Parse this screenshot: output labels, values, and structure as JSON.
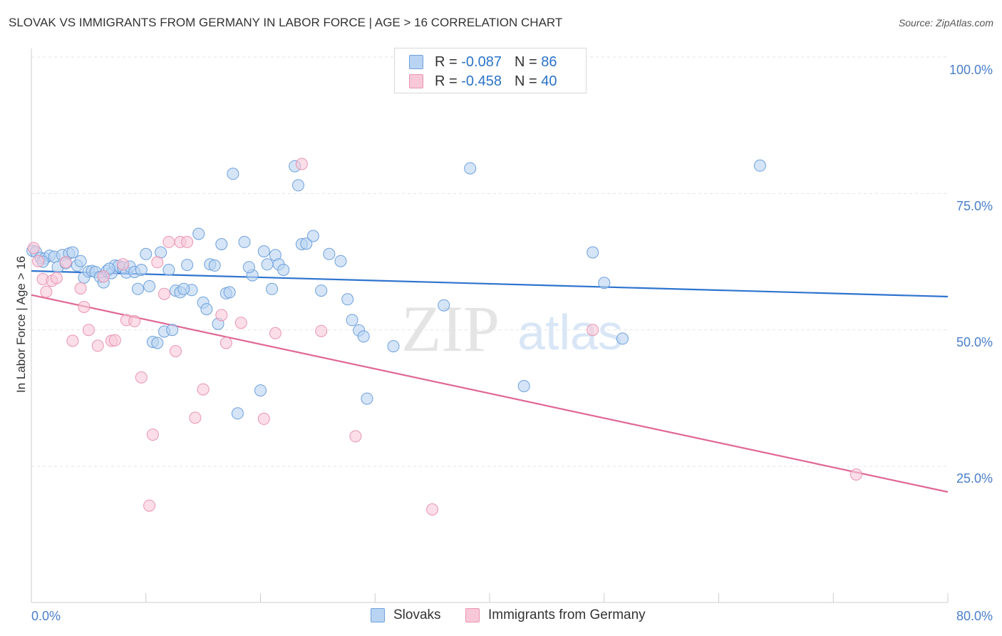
{
  "header": {
    "title": "SLOVAK VS IMMIGRANTS FROM GERMANY IN LABOR FORCE | AGE > 16 CORRELATION CHART",
    "source": "Source: ZipAtlas.com"
  },
  "legend": {
    "series1": {
      "r_label": "R = ",
      "r_value": "-0.087",
      "n_label": "N = ",
      "n_value": "86"
    },
    "series2": {
      "r_label": "R = ",
      "r_value": "-0.458",
      "n_label": "N = ",
      "n_value": "40"
    }
  },
  "bottom_legend": {
    "series1": "Slovaks",
    "series2": "Immigrants from Germany"
  },
  "watermark": {
    "zip": "ZIP",
    "atlas": "atlas"
  },
  "colors": {
    "series1_fill": "#b9d3f2",
    "series1_stroke": "#6ea0dc",
    "series1_line": "#2e74cf",
    "series2_fill": "#f8c8d8",
    "series2_stroke": "#e994b0",
    "series2_line": "#e06794",
    "axis_label": "#4a7fcb",
    "grid": "#e3e3e3"
  },
  "chart_data": {
    "type": "scatter",
    "title": "SLOVAK VS IMMIGRANTS FROM GERMANY IN LABOR FORCE | AGE > 16 CORRELATION CHART",
    "xlabel": "",
    "ylabel": "In Labor Force | Age > 16",
    "xlim": [
      0,
      80
    ],
    "ylim": [
      0,
      105
    ],
    "x_tick_labels": [
      "0.0%",
      "80.0%"
    ],
    "y_ticks": [
      25,
      50,
      75,
      100
    ],
    "y_tick_labels": [
      "25.0%",
      "50.0%",
      "75.0%",
      "100.0%"
    ],
    "series": [
      {
        "name": "Slovaks",
        "R": -0.087,
        "N": 86,
        "trend": {
          "x": [
            0,
            80
          ],
          "y": [
            60.8,
            56.1
          ]
        },
        "points": [
          [
            0.1,
            64.5
          ],
          [
            0.4,
            64.3
          ],
          [
            0.8,
            63.2
          ],
          [
            1.2,
            63.1
          ],
          [
            1.6,
            63.6
          ],
          [
            2.0,
            63.4
          ],
          [
            2.3,
            61.5
          ],
          [
            2.7,
            63.7
          ],
          [
            3.0,
            62.2
          ],
          [
            3.3,
            64.0
          ],
          [
            3.6,
            64.2
          ],
          [
            4.0,
            61.8
          ],
          [
            4.3,
            62.6
          ],
          [
            4.6,
            59.6
          ],
          [
            5.0,
            60.7
          ],
          [
            5.3,
            60.8
          ],
          [
            5.6,
            60.6
          ],
          [
            6.0,
            59.7
          ],
          [
            6.3,
            58.7
          ],
          [
            6.6,
            60.8
          ],
          [
            7.0,
            60.4
          ],
          [
            7.3,
            61.8
          ],
          [
            7.6,
            61.7
          ],
          [
            8.0,
            61.5
          ],
          [
            8.3,
            60.5
          ],
          [
            8.6,
            61.6
          ],
          [
            9.0,
            60.6
          ],
          [
            9.3,
            57.5
          ],
          [
            9.6,
            61.0
          ],
          [
            10.0,
            63.9
          ],
          [
            10.3,
            58.0
          ],
          [
            10.6,
            47.8
          ],
          [
            11.0,
            47.6
          ],
          [
            11.3,
            64.2
          ],
          [
            11.6,
            49.7
          ],
          [
            12.0,
            61.0
          ],
          [
            12.3,
            50.0
          ],
          [
            12.6,
            57.2
          ],
          [
            13.0,
            56.9
          ],
          [
            13.6,
            61.9
          ],
          [
            14.0,
            57.3
          ],
          [
            14.6,
            67.6
          ],
          [
            15.0,
            55.0
          ],
          [
            15.3,
            53.8
          ],
          [
            15.6,
            62.0
          ],
          [
            16.0,
            61.8
          ],
          [
            16.3,
            51.1
          ],
          [
            16.6,
            65.7
          ],
          [
            17.0,
            56.7
          ],
          [
            17.3,
            56.9
          ],
          [
            17.6,
            78.6
          ],
          [
            18.0,
            34.7
          ],
          [
            18.6,
            66.1
          ],
          [
            19.3,
            60.0
          ],
          [
            20.0,
            38.9
          ],
          [
            20.3,
            64.4
          ],
          [
            20.6,
            62.0
          ],
          [
            21.0,
            57.5
          ],
          [
            21.3,
            63.7
          ],
          [
            21.6,
            62.0
          ],
          [
            22.0,
            61.0
          ],
          [
            23.0,
            80.0
          ],
          [
            23.3,
            76.5
          ],
          [
            23.6,
            65.7
          ],
          [
            24.0,
            65.8
          ],
          [
            24.6,
            67.2
          ],
          [
            25.3,
            57.2
          ],
          [
            26.0,
            63.9
          ],
          [
            27.0,
            62.6
          ],
          [
            27.6,
            55.6
          ],
          [
            28.0,
            51.8
          ],
          [
            28.6,
            49.9
          ],
          [
            29.0,
            48.8
          ],
          [
            29.3,
            37.4
          ],
          [
            31.6,
            47.0
          ],
          [
            36.0,
            54.5
          ],
          [
            38.3,
            79.6
          ],
          [
            43.0,
            39.7
          ],
          [
            49.0,
            64.2
          ],
          [
            50.0,
            58.6
          ],
          [
            51.6,
            48.4
          ],
          [
            63.6,
            80.1
          ],
          [
            1.0,
            62.5
          ],
          [
            6.8,
            61.2
          ],
          [
            13.3,
            57.5
          ],
          [
            19.0,
            61.5
          ]
        ]
      },
      {
        "name": "Immigrants from Germany",
        "R": -0.458,
        "N": 40,
        "trend": {
          "x": [
            0,
            80
          ],
          "y": [
            56.4,
            20.3
          ]
        },
        "points": [
          [
            0.2,
            65.0
          ],
          [
            0.6,
            62.6
          ],
          [
            1.0,
            59.3
          ],
          [
            1.3,
            57.0
          ],
          [
            1.8,
            59.0
          ],
          [
            2.2,
            59.5
          ],
          [
            3.0,
            62.4
          ],
          [
            3.6,
            48.0
          ],
          [
            4.3,
            57.6
          ],
          [
            4.6,
            54.2
          ],
          [
            5.0,
            50.0
          ],
          [
            5.8,
            47.1
          ],
          [
            6.3,
            59.8
          ],
          [
            7.0,
            48.0
          ],
          [
            7.3,
            48.1
          ],
          [
            8.0,
            62.0
          ],
          [
            8.3,
            51.8
          ],
          [
            9.0,
            51.6
          ],
          [
            9.6,
            41.3
          ],
          [
            10.3,
            17.8
          ],
          [
            10.6,
            30.8
          ],
          [
            11.0,
            62.4
          ],
          [
            11.6,
            56.6
          ],
          [
            12.0,
            66.1
          ],
          [
            12.6,
            46.1
          ],
          [
            13.0,
            66.1
          ],
          [
            13.6,
            66.1
          ],
          [
            14.3,
            33.9
          ],
          [
            15.0,
            39.1
          ],
          [
            16.6,
            52.7
          ],
          [
            17.0,
            47.6
          ],
          [
            18.3,
            51.3
          ],
          [
            20.3,
            33.7
          ],
          [
            21.3,
            49.4
          ],
          [
            23.6,
            80.4
          ],
          [
            25.3,
            49.8
          ],
          [
            28.3,
            30.5
          ],
          [
            35.0,
            17.1
          ],
          [
            49.0,
            50.0
          ],
          [
            72.0,
            23.5
          ]
        ]
      }
    ]
  }
}
